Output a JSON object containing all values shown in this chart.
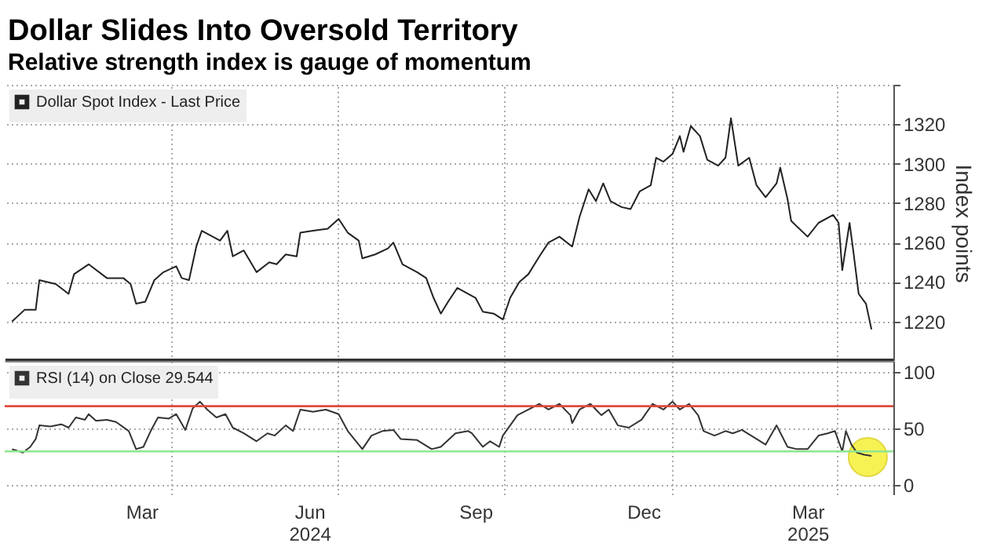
{
  "chart_data": [
    {
      "type": "line",
      "title": "Dollar Slides Into Oversold Territory",
      "subtitle": "Relative strength index is gauge of momentum",
      "ylabel": "Index points",
      "x": [
        "2024-01-05",
        "2024-01-12",
        "2024-01-18",
        "2024-01-20",
        "2024-01-29",
        "2024-02-05",
        "2024-02-08",
        "2024-02-16",
        "2024-02-26",
        "2024-03-06",
        "2024-03-10",
        "2024-03-13",
        "2024-03-18",
        "2024-03-23",
        "2024-03-28",
        "2024-04-04",
        "2024-04-07",
        "2024-04-11",
        "2024-04-15",
        "2024-04-18",
        "2024-04-22",
        "2024-04-28",
        "2024-05-02",
        "2024-05-05",
        "2024-05-11",
        "2024-05-18",
        "2024-05-25",
        "2024-05-29",
        "2024-06-03",
        "2024-06-09",
        "2024-06-11",
        "2024-06-18",
        "2024-06-26",
        "2024-07-02",
        "2024-07-07",
        "2024-07-13",
        "2024-07-15",
        "2024-07-22",
        "2024-07-29",
        "2024-08-01",
        "2024-08-06",
        "2024-08-14",
        "2024-08-19",
        "2024-08-23",
        "2024-08-27",
        "2024-08-31",
        "2024-09-05",
        "2024-09-15",
        "2024-09-19",
        "2024-09-25",
        "2024-09-30",
        "2024-10-04",
        "2024-10-09",
        "2024-10-14",
        "2024-10-20",
        "2024-10-25",
        "2024-10-31",
        "2024-11-07",
        "2024-11-11",
        "2024-11-16",
        "2024-11-20",
        "2024-11-24",
        "2024-11-28",
        "2024-12-04",
        "2024-12-09",
        "2024-12-14",
        "2024-12-20",
        "2024-12-23",
        "2024-12-27",
        "2025-01-01",
        "2025-01-05",
        "2025-01-07",
        "2025-01-11",
        "2025-01-16",
        "2025-01-20",
        "2025-01-26",
        "2025-01-30",
        "2025-02-02",
        "2025-02-06",
        "2025-02-12",
        "2025-02-16",
        "2025-02-21",
        "2025-02-27",
        "2025-03-01",
        "2025-03-05",
        "2025-03-07",
        "2025-03-16",
        "2025-03-22",
        "2025-03-30",
        "2025-04-02",
        "2025-04-04",
        "2025-04-08",
        "2025-04-10",
        "2025-04-13",
        "2025-04-17",
        "2025-04-20"
      ],
      "series": [
        {
          "name": "Dollar Spot Index - Last Price",
          "color": "#222222",
          "values": [
            1220,
            1226,
            1226,
            1241,
            1239,
            1234,
            1244,
            1249,
            1242,
            1242,
            1239,
            1229,
            1230,
            1241,
            1245,
            1248,
            1242,
            1241,
            1258,
            1266,
            1264,
            1261,
            1266,
            1253,
            1256,
            1245,
            1250,
            1249,
            1254,
            1253,
            1265,
            1266,
            1267,
            1272,
            1265,
            1261,
            1252,
            1254,
            1257,
            1260,
            1249,
            1245,
            1242,
            1232,
            1224,
            1230,
            1237,
            1232,
            1225,
            1224,
            1221,
            1232,
            1240,
            1244,
            1253,
            1260,
            1263,
            1258,
            1273,
            1287,
            1281,
            1290,
            1281,
            1278,
            1277,
            1286,
            1289,
            1303,
            1301,
            1305,
            1314,
            1306,
            1319,
            1314,
            1302,
            1299,
            1303,
            1323,
            1299,
            1303,
            1289,
            1283,
            1290,
            1298,
            1282,
            1271,
            1263,
            1270,
            1274,
            1270,
            1246,
            1270,
            1256,
            1234,
            1229,
            1216
          ]
        }
      ],
      "xlim": [
        "2024-01-01",
        "2025-05-02"
      ],
      "xticks": [
        {
          "value": "2024-04-01",
          "label": null
        },
        {
          "value": "2024-07-01",
          "label": null
        },
        {
          "value": "2024-10-01",
          "label": null
        },
        {
          "value": "2025-01-01",
          "label": null
        },
        {
          "value": "2025-04-01",
          "label": null
        }
      ],
      "ylim": [
        1200,
        1340
      ],
      "yticks": [
        1220,
        1240,
        1260,
        1280,
        1300,
        1320,
        {
          "value": 1340,
          "label": null
        }
      ],
      "grid": true,
      "legend": "top left",
      "tick_labels": "y"
    },
    {
      "type": "line",
      "series": [
        {
          "name": "RSI (14) on Close 29.544",
          "color": "#333333",
          "x": [
            "2024-01-05",
            "2024-01-11",
            "2024-01-15",
            "2024-01-18",
            "2024-01-20",
            "2024-01-26",
            "2024-02-01",
            "2024-02-05",
            "2024-02-09",
            "2024-02-14",
            "2024-02-16",
            "2024-02-20",
            "2024-02-26",
            "2024-03-02",
            "2024-03-09",
            "2024-03-13",
            "2024-03-17",
            "2024-03-21",
            "2024-03-25",
            "2024-03-31",
            "2024-04-04",
            "2024-04-09",
            "2024-04-13",
            "2024-04-17",
            "2024-04-21",
            "2024-04-26",
            "2024-05-01",
            "2024-05-05",
            "2024-05-11",
            "2024-05-18",
            "2024-05-24",
            "2024-05-28",
            "2024-06-03",
            "2024-06-07",
            "2024-06-11",
            "2024-06-18",
            "2024-06-25",
            "2024-07-02",
            "2024-07-07",
            "2024-07-15",
            "2024-07-20",
            "2024-07-26",
            "2024-08-01",
            "2024-08-05",
            "2024-08-14",
            "2024-08-22",
            "2024-08-27",
            "2024-09-04",
            "2024-09-11",
            "2024-09-13",
            "2024-09-19",
            "2024-09-23",
            "2024-09-28",
            "2024-09-30",
            "2024-10-08",
            "2024-10-14",
            "2024-10-20",
            "2024-10-25",
            "2024-10-31",
            "2024-11-06",
            "2024-11-07",
            "2024-11-11",
            "2024-11-17",
            "2024-11-23",
            "2024-11-27",
            "2024-12-02",
            "2024-12-08",
            "2024-12-15",
            "2024-12-21",
            "2024-12-27",
            "2025-01-01",
            "2025-01-05",
            "2025-01-10",
            "2025-01-15",
            "2025-01-18",
            "2025-01-24",
            "2025-01-30",
            "2025-02-03",
            "2025-02-08",
            "2025-02-16",
            "2025-02-21",
            "2025-02-27",
            "2025-03-05",
            "2025-03-10",
            "2025-03-16",
            "2025-03-22",
            "2025-03-27",
            "2025-03-31",
            "2025-04-04",
            "2025-04-06",
            "2025-04-09",
            "2025-04-12",
            "2025-04-16",
            "2025-04-20"
          ],
          "values": [
            32,
            29,
            34,
            41,
            53,
            52,
            54,
            51,
            60,
            58,
            63,
            57,
            58,
            56,
            48,
            32,
            34,
            48,
            60,
            59,
            63,
            49,
            68,
            74,
            67,
            60,
            63,
            51,
            46,
            39,
            46,
            44,
            53,
            48,
            67,
            65,
            67,
            63,
            48,
            32,
            44,
            48,
            49,
            41,
            40,
            32,
            34,
            46,
            48,
            46,
            34,
            39,
            34,
            44,
            62,
            67,
            72,
            67,
            72,
            62,
            55,
            67,
            72,
            62,
            67,
            53,
            51,
            58,
            72,
            67,
            74,
            67,
            72,
            62,
            48,
            44,
            48,
            46,
            49,
            41,
            36,
            53,
            34,
            32,
            32,
            44,
            46,
            48,
            30,
            48,
            36,
            29,
            27,
            26
          ]
        },
        {
          "type": "scatter",
          "color": "#f5ee1c",
          "marker": "circle",
          "x": [
            "2025-04-18"
          ],
          "values": [
            25
          ]
        }
      ],
      "xlim": [
        "2024-01-01",
        "2025-05-02"
      ],
      "xticks": [
        {
          "value": "2024-03-16",
          "label": "Mar"
        },
        {
          "value": "2024-04-01",
          "label": null
        },
        {
          "value": "2024-06-16",
          "label": "Jun\n2024"
        },
        {
          "value": "2024-07-01",
          "label": null
        },
        {
          "value": "2024-09-15",
          "label": "Sep"
        },
        {
          "value": "2024-10-01",
          "label": null
        },
        {
          "value": "2024-12-16",
          "label": "Dec"
        },
        {
          "value": "2025-01-01",
          "label": null
        },
        {
          "value": "2025-03-16",
          "label": "Mar\n2025"
        },
        {
          "value": "2025-04-01",
          "label": null
        }
      ],
      "ylim": [
        -8,
        110
      ],
      "yticks": [
        0,
        50,
        100
      ],
      "grid": true,
      "legend": "top left",
      "ref_lines": [
        {
          "axis": "y",
          "value": 70,
          "color": "#e0493c"
        },
        {
          "axis": "y",
          "value": 30,
          "color": "#8ee68e"
        }
      ]
    }
  ]
}
